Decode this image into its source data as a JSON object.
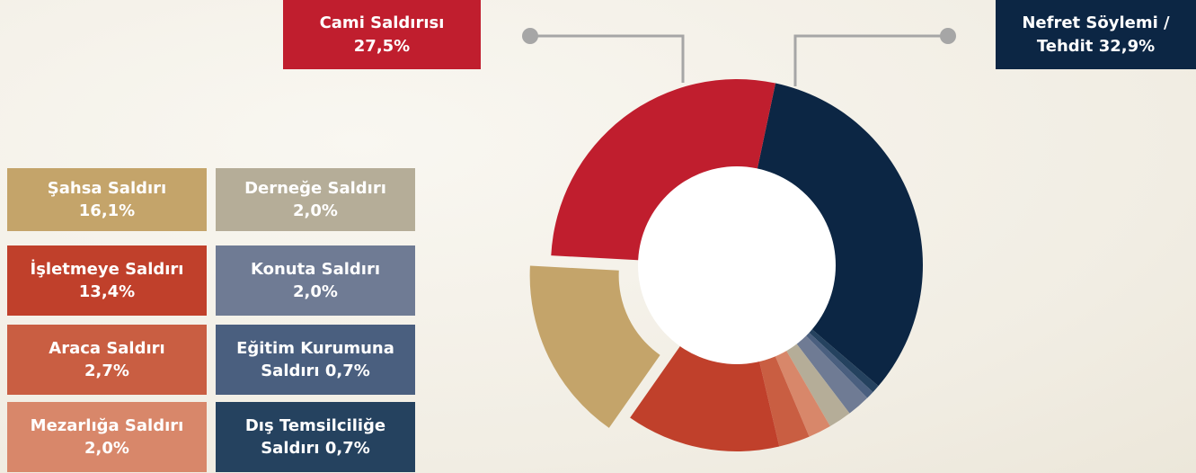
{
  "chart_data": {
    "type": "pie",
    "donut": true,
    "categories": [
      "Nefret Söylemi / Tehdit",
      "Dış Temsilciliğe Saldırı",
      "Eğitim Kurumuna Saldırı",
      "Konuta Saldırı",
      "Derneğe Saldırı",
      "Mezarlığa Saldırı",
      "Araca Saldırı",
      "İşletmeye Saldırı",
      "Şahsa Saldırı",
      "Cami Saldırısı"
    ],
    "values": [
      32.9,
      0.7,
      0.7,
      2.0,
      2.0,
      2.0,
      2.7,
      13.4,
      16.1,
      27.5
    ],
    "value_labels": [
      "32,9%",
      "0,7%",
      "0,7%",
      "2,0%",
      "2,0%",
      "2,0%",
      "2,7%",
      "13,4%",
      "16,1%",
      "27,5%"
    ],
    "colors": [
      "#0c2644",
      "#25425f",
      "#4a5f7f",
      "#6f7b94",
      "#b5ad98",
      "#d8876a",
      "#c95e42",
      "#c0402b",
      "#c4a46a",
      "#c01e2e"
    ]
  }
}
